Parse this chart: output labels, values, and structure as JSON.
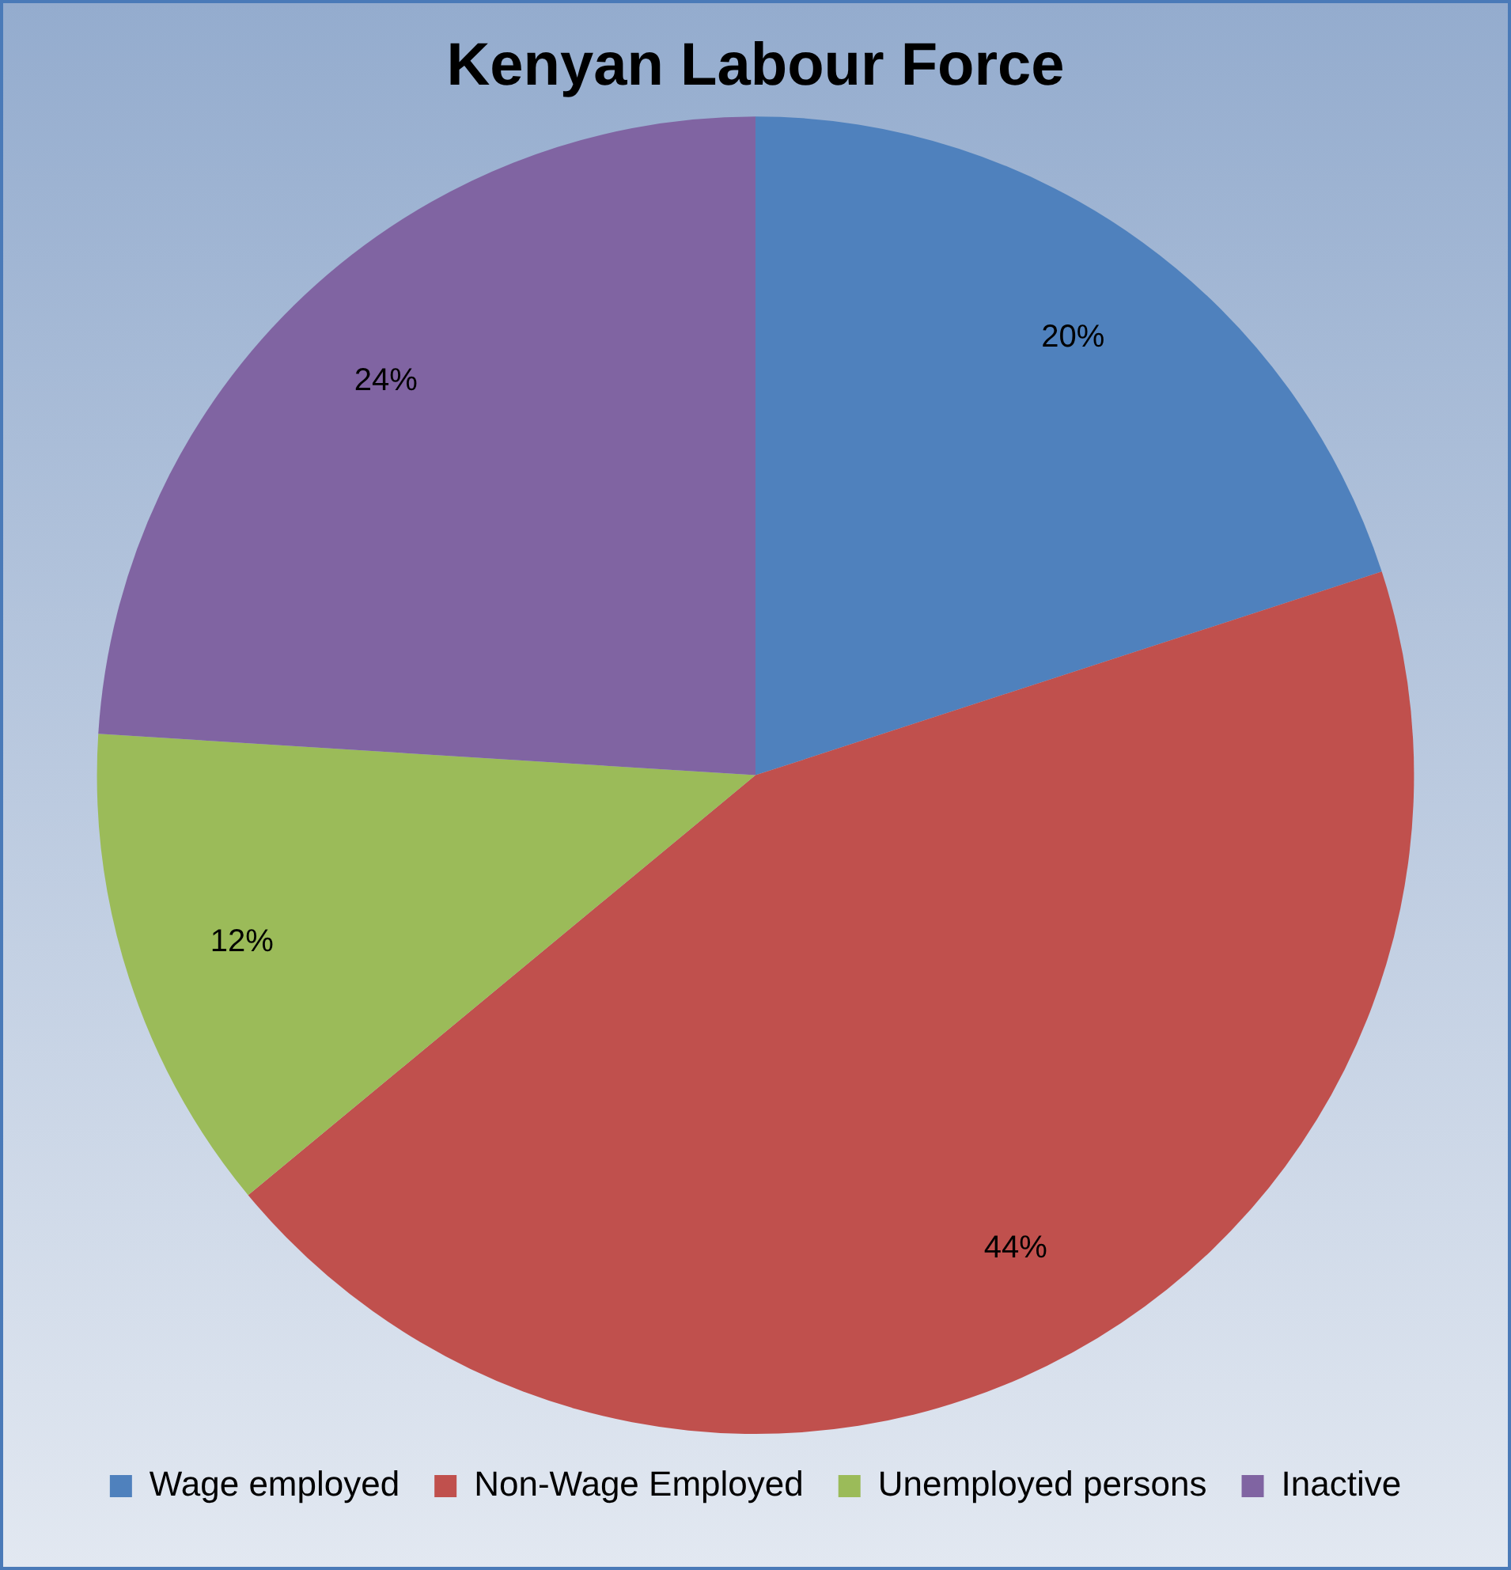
{
  "chart_data": {
    "type": "pie",
    "title": "Kenyan Labour Force",
    "categories": [
      "Wage employed",
      "Non-Wage Employed",
      "Unemployed persons",
      "Inactive"
    ],
    "values": [
      20,
      44,
      12,
      24
    ],
    "colors": [
      "#4f81bd",
      "#c0504d",
      "#9bbb59",
      "#8064a2"
    ],
    "value_labels": [
      "20%",
      "44%",
      "12%",
      "24%"
    ],
    "legend": "bottom"
  }
}
